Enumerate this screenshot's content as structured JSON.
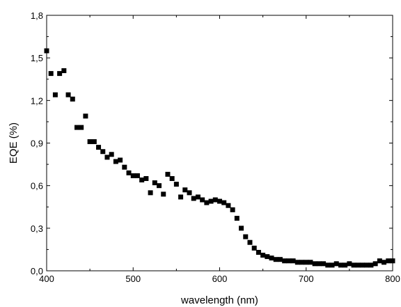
{
  "chart_data": {
    "type": "scatter",
    "title": "",
    "xlabel": "wavelength (nm)",
    "ylabel": "EQE (%)",
    "xlim": [
      400,
      800
    ],
    "ylim": [
      0,
      1.8
    ],
    "x_ticks": [
      400,
      500,
      600,
      700,
      800
    ],
    "y_ticks": [
      0,
      0.3,
      0.6,
      0.9,
      1.2,
      1.5,
      1.8
    ],
    "x_tick_labels": [
      "400",
      "500",
      "600",
      "700",
      "800"
    ],
    "y_tick_labels": [
      "0,0",
      "0,3",
      "0,6",
      "0,9",
      "1,2",
      "1,5",
      "1,8"
    ],
    "grid": false,
    "legend": "none",
    "marker": "square",
    "marker_color": "#000000",
    "series": [
      {
        "x": [
          400,
          405,
          410,
          415,
          420,
          425,
          430,
          435,
          440,
          445,
          450,
          455,
          460,
          465,
          470,
          475,
          480,
          485,
          490,
          495,
          500,
          505,
          510,
          515,
          520,
          525,
          530,
          535,
          540,
          545,
          550,
          555,
          560,
          565,
          570,
          575,
          580,
          585,
          590,
          595,
          600,
          605,
          610,
          615,
          620,
          625,
          630,
          635,
          640,
          645,
          650,
          655,
          660,
          665,
          670,
          675,
          680,
          685,
          690,
          695,
          700,
          705,
          710,
          715,
          720,
          725,
          730,
          735,
          740,
          745,
          750,
          755,
          760,
          765,
          770,
          775,
          780,
          785,
          790,
          795,
          800
        ],
        "y": [
          1.55,
          1.39,
          1.24,
          1.39,
          1.41,
          1.24,
          1.21,
          1.01,
          1.01,
          1.09,
          0.91,
          0.91,
          0.87,
          0.84,
          0.8,
          0.82,
          0.77,
          0.78,
          0.73,
          0.69,
          0.67,
          0.67,
          0.64,
          0.65,
          0.55,
          0.62,
          0.6,
          0.54,
          0.68,
          0.65,
          0.61,
          0.52,
          0.57,
          0.55,
          0.51,
          0.52,
          0.5,
          0.48,
          0.49,
          0.5,
          0.49,
          0.48,
          0.46,
          0.43,
          0.37,
          0.3,
          0.24,
          0.2,
          0.16,
          0.13,
          0.11,
          0.1,
          0.09,
          0.08,
          0.08,
          0.07,
          0.07,
          0.07,
          0.06,
          0.06,
          0.06,
          0.06,
          0.05,
          0.05,
          0.05,
          0.04,
          0.04,
          0.05,
          0.04,
          0.04,
          0.05,
          0.04,
          0.04,
          0.04,
          0.04,
          0.04,
          0.05,
          0.07,
          0.06,
          0.07,
          0.07
        ]
      }
    ]
  }
}
